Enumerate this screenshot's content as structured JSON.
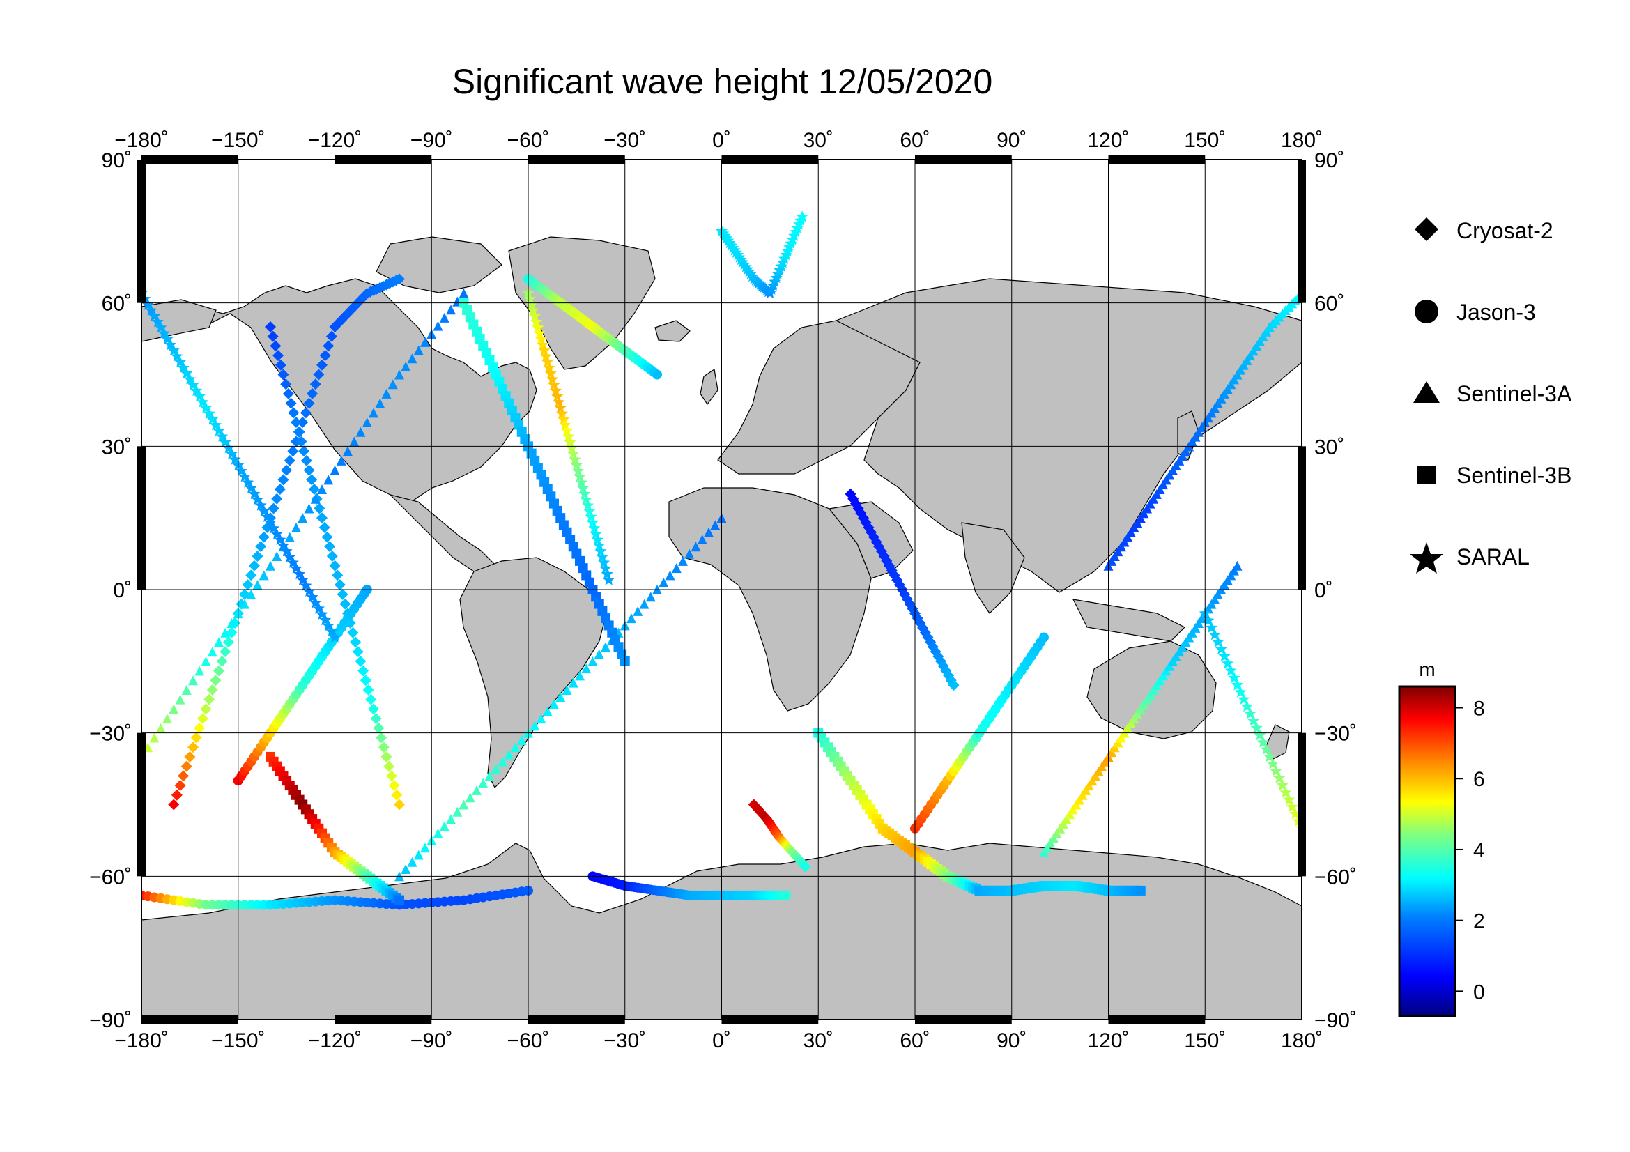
{
  "title": "Significant wave height 12/05/2020",
  "axes": {
    "x_ticks": [
      "−180˚",
      "−150˚",
      "−120˚",
      "−90˚",
      "−60˚",
      "−30˚",
      "0˚",
      "30˚",
      "60˚",
      "90˚",
      "120˚",
      "150˚",
      "180˚"
    ],
    "y_ticks_left": [
      "90˚",
      "60˚",
      "30˚",
      "0˚",
      "−30˚",
      "−60˚",
      "−90˚"
    ],
    "y_ticks_right": [
      "90˚",
      "60˚",
      "30˚",
      "0˚",
      "−30˚",
      "−60˚",
      "−90˚"
    ],
    "x_range": [
      -180,
      180
    ],
    "y_range": [
      -90,
      90
    ],
    "grid": true
  },
  "legend": {
    "placement": "right",
    "items": [
      {
        "label": "Cryosat-2",
        "icon": "diamond-icon"
      },
      {
        "label": "Jason-3",
        "icon": "circle-icon"
      },
      {
        "label": "Sentinel-3A",
        "icon": "triangle-icon"
      },
      {
        "label": "Sentinel-3B",
        "icon": "square-icon"
      },
      {
        "label": "SARAL",
        "icon": "star-icon"
      }
    ]
  },
  "colorbar": {
    "unit": "m",
    "ticks": [
      "8",
      "6",
      "4",
      "2",
      "0"
    ],
    "range": [
      -0.7,
      8.6
    ],
    "colormap": "jet",
    "colors": [
      "#00007f",
      "#0000ff",
      "#007fff",
      "#00ffff",
      "#7fff7f",
      "#ffff00",
      "#ff7f00",
      "#ff0000",
      "#7f0000"
    ]
  },
  "colors": {
    "land": "#c0c0c0",
    "coastline": "#000000",
    "ocean": "#ffffff",
    "frame": "#000000"
  },
  "chart_data": {
    "type": "scatter",
    "x_unit": "longitude (deg)",
    "y_unit": "latitude (deg)",
    "value_unit": "m",
    "series": [
      {
        "name": "Cryosat-2",
        "marker": "diamond",
        "tracks": [
          {
            "x": [
              -170,
              -160,
              -150,
              -140,
              -130,
              -120,
              -110,
              -100
            ],
            "y": [
              -45,
              -25,
              -5,
              15,
              35,
              55,
              62,
              65
            ],
            "v": [
              7.5,
              4.5,
              2.5,
              1.8,
              1.5,
              1.2,
              1.4,
              1.6
            ]
          },
          {
            "x": [
              -140,
              -132,
              -124,
              -116,
              -108,
              -100
            ],
            "y": [
              55,
              35,
              15,
              -5,
              -25,
              -45
            ],
            "v": [
              1.0,
              1.6,
              2.0,
              2.2,
              3.0,
              5.5
            ]
          },
          {
            "x": [
              10,
              14,
              18,
              22,
              26
            ],
            "y": [
              -45,
              -48,
              -52,
              -55,
              -58
            ],
            "v": [
              7.8,
              8.0,
              6.5,
              4.0,
              3.0
            ]
          },
          {
            "x": [
              40,
              48,
              56,
              64,
              72
            ],
            "y": [
              20,
              10,
              0,
              -10,
              -20
            ],
            "v": [
              0.5,
              0.8,
              1.0,
              1.5,
              2.2
            ]
          }
        ]
      },
      {
        "name": "Jason-3",
        "marker": "circle",
        "tracks": [
          {
            "x": [
              -60,
              -50,
              -40,
              -30,
              -20
            ],
            "y": [
              65,
              60,
              55,
              50,
              45
            ],
            "v": [
              3.0,
              4.5,
              5.0,
              3.5,
              2.2
            ]
          },
          {
            "x": [
              -180,
              -160,
              -140,
              -120,
              -100,
              -80,
              -60
            ],
            "y": [
              -64,
              -66,
              -66,
              -65,
              -66,
              -65,
              -63
            ],
            "v": [
              7.2,
              3.8,
              2.6,
              1.8,
              1.2,
              1.1,
              1.3
            ]
          },
          {
            "x": [
              -40,
              -30,
              -20,
              -10,
              0,
              10,
              20
            ],
            "y": [
              -60,
              -62,
              -63,
              -64,
              -64,
              -64,
              -64
            ],
            "v": [
              0.5,
              0.7,
              1.4,
              2.0,
              2.2,
              2.4,
              3.1
            ]
          },
          {
            "x": [
              -150,
              -140,
              -130,
              -120,
              -110
            ],
            "y": [
              -40,
              -30,
              -20,
              -10,
              0
            ],
            "v": [
              7.5,
              5.5,
              3.2,
              2.4,
              2.0
            ]
          },
          {
            "x": [
              60,
              70,
              80,
              90,
              100
            ],
            "y": [
              -50,
              -40,
              -30,
              -20,
              -10
            ],
            "v": [
              7.0,
              5.8,
              3.0,
              2.6,
              2.2
            ]
          }
        ]
      },
      {
        "name": "Sentinel-3A",
        "marker": "triangle",
        "tracks": [
          {
            "x": [
              -180,
              -160,
              -140,
              -120,
              -100,
              -80
            ],
            "y": [
              -35,
              -15,
              5,
              25,
              45,
              62
            ],
            "v": [
              4.8,
              3.0,
              2.2,
              1.6,
              1.8,
              1.5
            ]
          },
          {
            "x": [
              -100,
              -80,
              -60,
              -40,
              -20,
              0
            ],
            "y": [
              -60,
              -45,
              -30,
              -15,
              0,
              15
            ],
            "v": [
              2.2,
              3.5,
              2.8,
              2.4,
              1.8,
              1.5
            ]
          },
          {
            "x": [
              100,
              110,
              120,
              130,
              140,
              150,
              160
            ],
            "y": [
              -55,
              -45,
              -35,
              -25,
              -15,
              -5,
              5
            ],
            "v": [
              3.2,
              5.2,
              6.0,
              3.8,
              2.4,
              2.0,
              1.6
            ]
          },
          {
            "x": [
              120,
              130,
              140,
              150,
              160,
              170,
              180
            ],
            "y": [
              5,
              15,
              25,
              35,
              45,
              55,
              62
            ],
            "v": [
              1.2,
              1.0,
              1.3,
              1.5,
              2.0,
              2.4,
              2.8
            ]
          }
        ]
      },
      {
        "name": "Sentinel-3B",
        "marker": "square",
        "tracks": [
          {
            "x": [
              -140,
              -130,
              -120,
              -110,
              -100
            ],
            "y": [
              -35,
              -45,
              -55,
              -60,
              -65
            ],
            "v": [
              7.0,
              8.5,
              6.0,
              3.5,
              1.5
            ]
          },
          {
            "x": [
              -80,
              -70,
              -60,
              -50,
              -40,
              -30
            ],
            "y": [
              60,
              45,
              30,
              15,
              0,
              -15
            ],
            "v": [
              3.2,
              2.8,
              2.0,
              1.6,
              1.4,
              1.8
            ]
          },
          {
            "x": [
              30,
              40,
              50,
              60,
              70,
              80
            ],
            "y": [
              -30,
              -40,
              -50,
              -55,
              -60,
              -63
            ],
            "v": [
              3.0,
              4.4,
              5.5,
              6.0,
              4.0,
              2.0
            ]
          },
          {
            "x": [
              80,
              90,
              100,
              110,
              120,
              130
            ],
            "y": [
              -63,
              -63,
              -62,
              -62,
              -63,
              -63
            ],
            "v": [
              2.0,
              2.2,
              2.4,
              2.6,
              2.2,
              1.8
            ]
          }
        ]
      },
      {
        "name": "SARAL",
        "marker": "star",
        "tracks": [
          {
            "x": [
              -180,
              -170,
              -160,
              -150,
              -140,
              -130,
              -120
            ],
            "y": [
              62,
              50,
              38,
              26,
              14,
              2,
              -10
            ],
            "v": [
              1.8,
              2.2,
              2.6,
              2.0,
              1.8,
              1.6,
              2.0
            ]
          },
          {
            "x": [
              -60,
              -55,
              -50,
              -45,
              -40,
              -35
            ],
            "y": [
              62,
              50,
              38,
              26,
              14,
              2
            ],
            "v": [
              4.2,
              5.5,
              5.8,
              4.0,
              2.8,
              2.0
            ]
          },
          {
            "x": [
              0,
              5,
              10,
              15,
              20,
              25
            ],
            "y": [
              75,
              70,
              65,
              62,
              70,
              78
            ],
            "v": [
              2.6,
              2.5,
              2.2,
              1.8,
              2.6,
              2.8
            ]
          },
          {
            "x": [
              150,
              160,
              170,
              180
            ],
            "y": [
              -5,
              -20,
              -35,
              -50
            ],
            "v": [
              2.2,
              2.8,
              3.8,
              5.0
            ]
          }
        ]
      }
    ]
  }
}
